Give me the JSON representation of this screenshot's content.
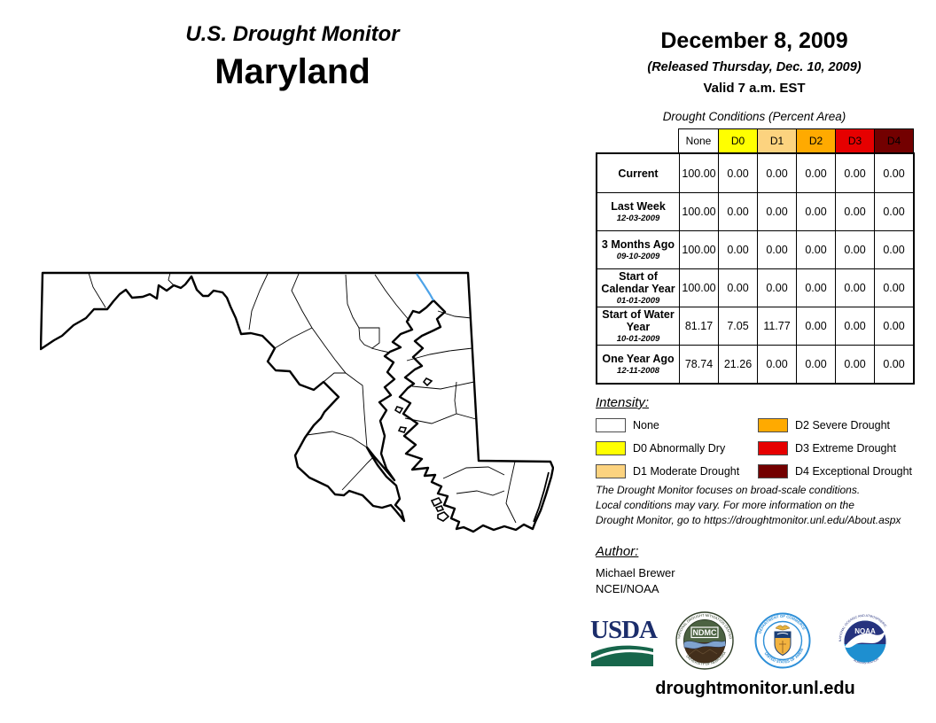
{
  "header": {
    "title": "U.S. Drought Monitor",
    "region": "Maryland",
    "date": "December 8, 2009",
    "released": "(Released Thursday, Dec. 10, 2009)",
    "valid": "Valid 7 a.m. EST"
  },
  "table": {
    "title": "Drought Conditions (Percent Area)",
    "columns": [
      "None",
      "D0",
      "D1",
      "D2",
      "D3",
      "D4"
    ],
    "column_colors": [
      "#ffffff",
      "#ffff00",
      "#fcd37f",
      "#ffaa00",
      "#e60000",
      "#730000"
    ],
    "rows": [
      {
        "label": "Current",
        "date": "",
        "values": [
          "100.00",
          "0.00",
          "0.00",
          "0.00",
          "0.00",
          "0.00"
        ]
      },
      {
        "label": "Last Week",
        "date": "12-03-2009",
        "values": [
          "100.00",
          "0.00",
          "0.00",
          "0.00",
          "0.00",
          "0.00"
        ]
      },
      {
        "label": "3 Months Ago",
        "date": "09-10-2009",
        "values": [
          "100.00",
          "0.00",
          "0.00",
          "0.00",
          "0.00",
          "0.00"
        ]
      },
      {
        "label": "Start of Calendar Year",
        "date": "01-01-2009",
        "values": [
          "100.00",
          "0.00",
          "0.00",
          "0.00",
          "0.00",
          "0.00"
        ]
      },
      {
        "label": "Start of Water Year",
        "date": "10-01-2009",
        "values": [
          "81.17",
          "7.05",
          "11.77",
          "0.00",
          "0.00",
          "0.00"
        ]
      },
      {
        "label": "One Year Ago",
        "date": "12-11-2008",
        "values": [
          "78.74",
          "21.26",
          "0.00",
          "0.00",
          "0.00",
          "0.00"
        ]
      }
    ]
  },
  "legend": {
    "title": "Intensity:",
    "items": [
      {
        "label": "None",
        "color": "#ffffff"
      },
      {
        "label": "D0 Abnormally Dry",
        "color": "#ffff00"
      },
      {
        "label": "D1 Moderate Drought",
        "color": "#fcd37f"
      },
      {
        "label": "D2 Severe Drought",
        "color": "#ffaa00"
      },
      {
        "label": "D3 Extreme Drought",
        "color": "#e60000"
      },
      {
        "label": "D4 Exceptional Drought",
        "color": "#730000"
      }
    ]
  },
  "disclaimer": {
    "lines": [
      "The Drought Monitor focuses on broad-scale conditions.",
      "Local conditions may vary. For more information on the",
      "Drought Monitor, go to https://droughtmonitor.unl.edu/About.aspx"
    ]
  },
  "author": {
    "title": "Author:",
    "name": "Michael Brewer",
    "org": "NCEI/NOAA"
  },
  "logos": {
    "usda": {
      "text": "USDA"
    },
    "ndmc": {
      "text": "NDMC",
      "arc_top": "NATIONAL DROUGHT MITIGATION CENTER",
      "arc_bottom": "UNIVERSITY OF NEBRASKA"
    },
    "doc": {
      "arc_top": "DEPARTMENT OF COMMERCE",
      "arc_bottom": "UNITED STATES OF AMERICA"
    },
    "noaa": {
      "text": "NOAA",
      "arc_top": "NATIONAL OCEANIC AND ATMOSPHERIC",
      "arc_bottom": "ADMINISTRATION"
    }
  },
  "footer": {
    "url": "droughtmonitor.unl.edu"
  },
  "map": {
    "region_label": "Maryland",
    "fill": "#ffffff",
    "outline_color": "#000000",
    "river_color": "#4da3e8",
    "features": [
      "state outline",
      "county boundaries",
      "Chesapeake Bay",
      "Susquehanna River",
      "Baltimore City"
    ]
  }
}
